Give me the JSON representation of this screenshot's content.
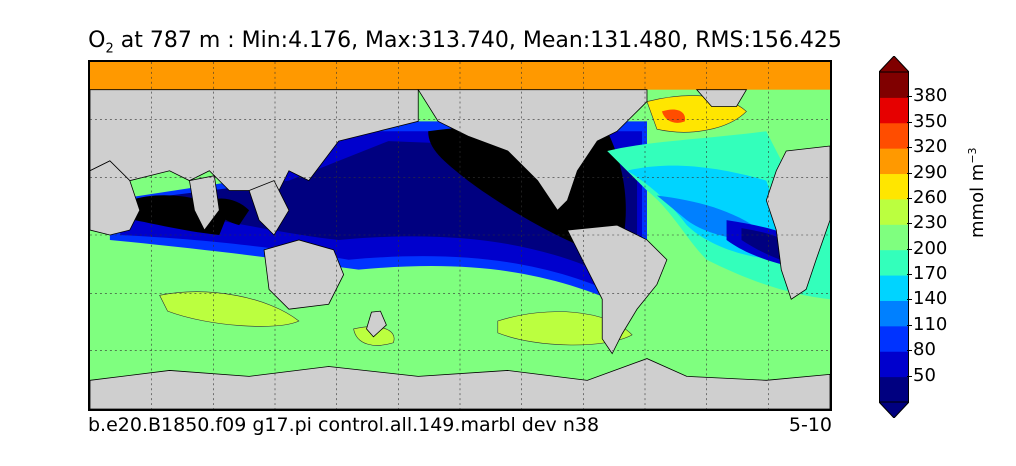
{
  "title": {
    "species": "O",
    "subscript": "2",
    "rest": " at 787 m : Min:4.176, Max:313.740, Mean:131.480, RMS:156.425"
  },
  "footer": {
    "case_name": "b.e20.B1850.f09 g17.pi control.all.149.marbl dev n38",
    "years": "5-10"
  },
  "colorbar": {
    "unit_label": "mmol m",
    "unit_exponent": "−3",
    "ticks": [
      "380",
      "350",
      "320",
      "290",
      "260",
      "230",
      "200",
      "170",
      "140",
      "110",
      "80",
      "50"
    ],
    "colors": [
      "#000080",
      "#0000cd",
      "#0033ff",
      "#0080ff",
      "#00d4ff",
      "#33ffbb",
      "#7fff7f",
      "#bbff3f",
      "#ffe600",
      "#ff9900",
      "#ff4d00",
      "#e60000",
      "#800000"
    ],
    "extend": "both"
  },
  "map": {
    "projection": "equirectangular",
    "land_color": "#cfcfcf",
    "grid": true
  }
}
